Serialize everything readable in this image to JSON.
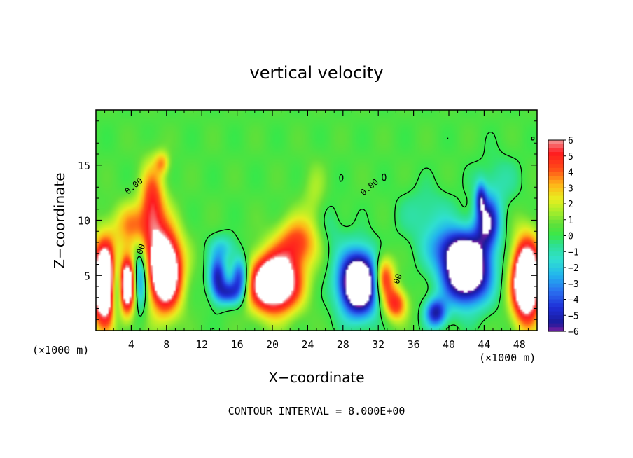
{
  "chart_data": {
    "type": "heatmap",
    "title": "vertical velocity",
    "xlabel": "X−coordinate",
    "ylabel": "Z−coordinate",
    "x_unit_left": "(×1000 m)",
    "x_unit_right": "(×1000 m)",
    "footer": "CONTOUR INTERVAL = 8.000E+00",
    "xlim": [
      0,
      50
    ],
    "ylim": [
      0,
      20
    ],
    "xticks": [
      4,
      8,
      12,
      16,
      20,
      24,
      28,
      32,
      36,
      40,
      44,
      48
    ],
    "xtick_labels": [
      "4",
      "8",
      "12",
      "16",
      "20",
      "24",
      "28",
      "32",
      "36",
      "40",
      "44",
      "48"
    ],
    "yticks": [
      5,
      10,
      15
    ],
    "ytick_labels": [
      "5",
      "10",
      "15"
    ],
    "colorbar": {
      "min": -6,
      "max": 6,
      "ticks": [
        6,
        5,
        4,
        3,
        2,
        1,
        0,
        -1,
        -2,
        -3,
        -4,
        -5,
        -6
      ],
      "tick_labels": [
        "6",
        "5",
        "4",
        "3",
        "2",
        "1",
        "0",
        "−1",
        "−2",
        "−3",
        "−4",
        "−5",
        "−6"
      ],
      "stops": [
        {
          "value": -6,
          "color": "#7a1fa0"
        },
        {
          "value": -5.5,
          "color": "#1a1a9a"
        },
        {
          "value": -4.5,
          "color": "#1f2fd8"
        },
        {
          "value": -3.5,
          "color": "#2a70f0"
        },
        {
          "value": -2.5,
          "color": "#22b4ee"
        },
        {
          "value": -1.5,
          "color": "#30e0d0"
        },
        {
          "value": -0.5,
          "color": "#2ee08a"
        },
        {
          "value": 0,
          "color": "#38e84a"
        },
        {
          "value": 0.7,
          "color": "#5ee03a"
        },
        {
          "value": 1.5,
          "color": "#a8ee2a"
        },
        {
          "value": 2.3,
          "color": "#e8ee20"
        },
        {
          "value": 3.2,
          "color": "#ffb418"
        },
        {
          "value": 4.2,
          "color": "#ff4a18"
        },
        {
          "value": 5.2,
          "color": "#ff1a20"
        },
        {
          "value": 6,
          "color": "#f49a9a"
        }
      ],
      "above_max_color": "#ffffff"
    },
    "contour_labels": [
      {
        "text": "0.00",
        "x": 4.5,
        "y": 12.9,
        "angle": -40
      },
      {
        "text": "0.00",
        "x": 31.2,
        "y": 12.8,
        "angle": -40
      },
      {
        "text": "00",
        "x": 5.4,
        "y": 7.3,
        "angle": -70
      },
      {
        "text": "00",
        "x": 34.5,
        "y": 4.6,
        "angle": -70
      }
    ],
    "features": [
      {
        "kind": "updraft",
        "x": 1.0,
        "y": 4.3,
        "sx": 1.5,
        "sy": 3.6,
        "amp": 11
      },
      {
        "kind": "updraft",
        "x": 7.8,
        "y": 5.5,
        "sx": 1.9,
        "sy": 3.6,
        "amp": 10
      },
      {
        "kind": "updraft",
        "x": 6.4,
        "y": 11.5,
        "sx": 1.4,
        "sy": 3.5,
        "amp": 4.5
      },
      {
        "kind": "updraft",
        "x": 4.0,
        "y": 9.5,
        "sx": 2.0,
        "sy": 2.0,
        "amp": 3
      },
      {
        "kind": "updraft",
        "x": 7.5,
        "y": 15.2,
        "sx": 0.8,
        "sy": 1.0,
        "amp": 2.5
      },
      {
        "kind": "updraft",
        "x": 3.6,
        "y": 4.2,
        "sx": 0.9,
        "sy": 2.6,
        "amp": 8
      },
      {
        "kind": "updraft",
        "x": 20.2,
        "y": 4.3,
        "sx": 2.8,
        "sy": 2.6,
        "amp": 10
      },
      {
        "kind": "updraft",
        "x": 22.8,
        "y": 8.0,
        "sx": 2.3,
        "sy": 2.2,
        "amp": 4
      },
      {
        "kind": "updraft",
        "x": 32.6,
        "y": 4.8,
        "sx": 1.2,
        "sy": 2.0,
        "amp": 5.5
      },
      {
        "kind": "updraft",
        "x": 34.0,
        "y": 2.4,
        "sx": 1.3,
        "sy": 1.5,
        "amp": 4.5
      },
      {
        "kind": "updraft",
        "x": 48.8,
        "y": 4.5,
        "sx": 1.6,
        "sy": 3.6,
        "amp": 11
      },
      {
        "kind": "updraft",
        "x": 24.8,
        "y": 12.0,
        "sx": 1.4,
        "sy": 3.0,
        "amp": 1.2
      },
      {
        "kind": "downdraft",
        "x": 2.3,
        "y": 4.0,
        "sx": 0.7,
        "sy": 2.6,
        "amp": -5
      },
      {
        "kind": "downdraft",
        "x": 5.0,
        "y": 4.6,
        "sx": 0.8,
        "sy": 2.6,
        "amp": -4.5
      },
      {
        "kind": "downdraft",
        "x": 13.8,
        "y": 4.8,
        "sx": 1.0,
        "sy": 1.9,
        "amp": -5.5
      },
      {
        "kind": "downdraft",
        "x": 16.3,
        "y": 4.8,
        "sx": 1.0,
        "sy": 1.9,
        "amp": -5.5
      },
      {
        "kind": "downdraft",
        "x": 15.0,
        "y": 3.4,
        "sx": 1.2,
        "sy": 1.0,
        "amp": -4
      },
      {
        "kind": "downdraft",
        "x": 29.8,
        "y": 4.3,
        "sx": 2.2,
        "sy": 2.8,
        "amp": -11
      },
      {
        "kind": "downdraft",
        "x": 38.5,
        "y": 1.6,
        "sx": 1.2,
        "sy": 1.3,
        "amp": -5.5
      },
      {
        "kind": "downdraft",
        "x": 42.0,
        "y": 5.3,
        "sx": 2.6,
        "sy": 2.8,
        "amp": -10
      },
      {
        "kind": "downdraft",
        "x": 44.4,
        "y": 9.8,
        "sx": 1.4,
        "sy": 2.3,
        "amp": -6
      },
      {
        "kind": "downdraft",
        "x": 43.6,
        "y": 12.0,
        "sx": 0.6,
        "sy": 1.4,
        "amp": -4
      },
      {
        "kind": "downdraft",
        "x": 40.5,
        "y": 7.5,
        "sx": 3.0,
        "sy": 2.0,
        "amp": -3.5
      },
      {
        "kind": "downdraft",
        "x": 37.5,
        "y": 10.5,
        "sx": 3.0,
        "sy": 2.5,
        "amp": -1.4
      },
      {
        "kind": "downdraft",
        "x": 45.5,
        "y": 13.5,
        "sx": 2.5,
        "sy": 2.5,
        "amp": -1.2
      },
      {
        "kind": "downdraft",
        "x": 14.5,
        "y": 7.5,
        "sx": 1.5,
        "sy": 1.2,
        "amp": -2
      },
      {
        "kind": "downdraft",
        "x": 26.5,
        "y": 9.5,
        "sx": 1.6,
        "sy": 2.5,
        "amp": -1.0
      }
    ]
  }
}
